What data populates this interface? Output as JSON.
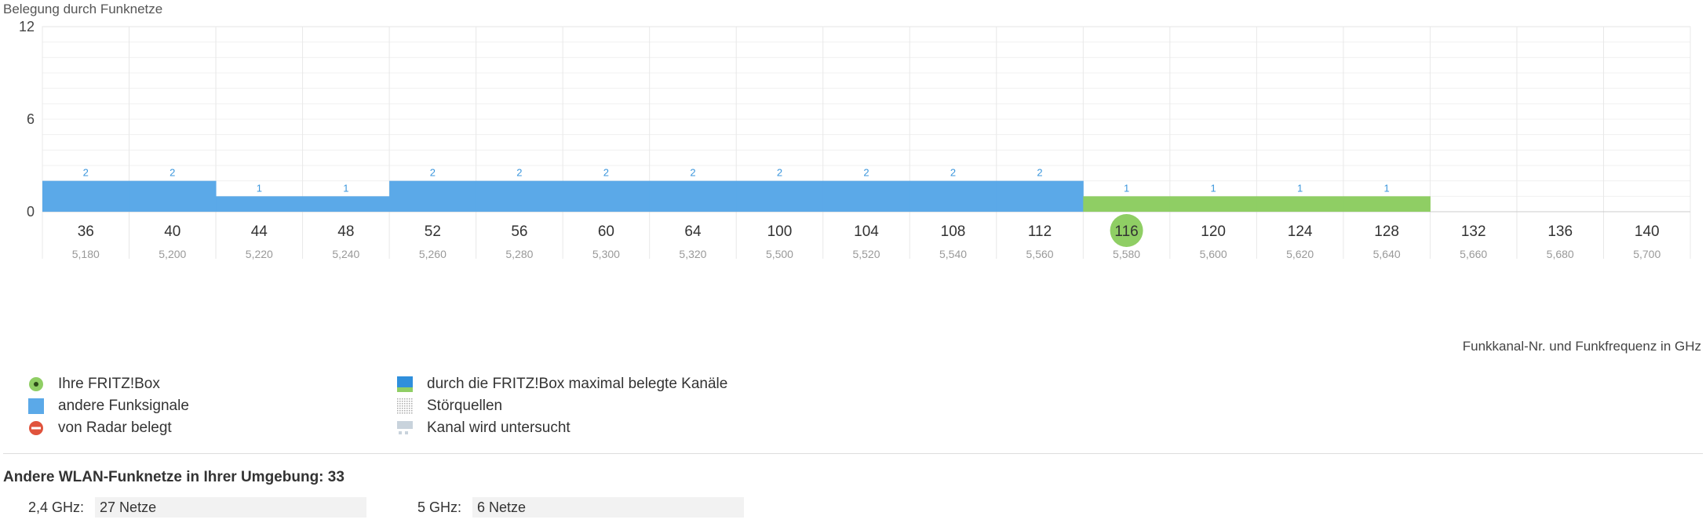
{
  "chart_data": {
    "type": "bar",
    "title": "Belegung durch Funknetze",
    "xlabel": "Funkkanal-Nr. und Funkfrequenz in GHz",
    "ylim": [
      0,
      12
    ],
    "yticks": [
      0,
      6,
      12
    ],
    "grid": true,
    "categories": [
      "36",
      "40",
      "44",
      "48",
      "52",
      "56",
      "60",
      "64",
      "100",
      "104",
      "108",
      "112",
      "116",
      "120",
      "124",
      "128",
      "132",
      "136",
      "140"
    ],
    "frequencies": [
      "5,180",
      "5,200",
      "5,220",
      "5,240",
      "5,260",
      "5,280",
      "5,300",
      "5,320",
      "5,500",
      "5,520",
      "5,540",
      "5,560",
      "5,580",
      "5,600",
      "5,620",
      "5,640",
      "5,660",
      "5,680",
      "5,700"
    ],
    "values": [
      2,
      2,
      1,
      1,
      2,
      2,
      2,
      2,
      2,
      2,
      2,
      2,
      1,
      1,
      1,
      1,
      null,
      null,
      null
    ],
    "own_channels": [
      "116",
      "120",
      "124",
      "128"
    ],
    "current_channel": "116",
    "colors": {
      "other": "#5ba9e8",
      "own": "#8fce64",
      "current": "#8fce64",
      "radar": "#e0533c"
    }
  },
  "legend": {
    "left": [
      {
        "icon": "fritzbox-icon",
        "label": "Ihre FRITZ!Box"
      },
      {
        "icon": "other-signals-icon",
        "label": "andere Funksignale"
      },
      {
        "icon": "radar-icon",
        "label": "von Radar belegt"
      }
    ],
    "right": [
      {
        "icon": "max-channels-icon",
        "label": "durch die FRITZ!Box maximal belegte Kanäle"
      },
      {
        "icon": "interference-icon",
        "label": "Störquellen"
      },
      {
        "icon": "scanning-icon",
        "label": "Kanal wird untersucht"
      }
    ]
  },
  "networks": {
    "heading": "Andere WLAN-Funknetze in Ihrer Umgebung: 33",
    "band_24_label": "2,4 GHz:",
    "band_24_value": "27 Netze",
    "band_5_label": "5 GHz:",
    "band_5_value": "6 Netze"
  }
}
